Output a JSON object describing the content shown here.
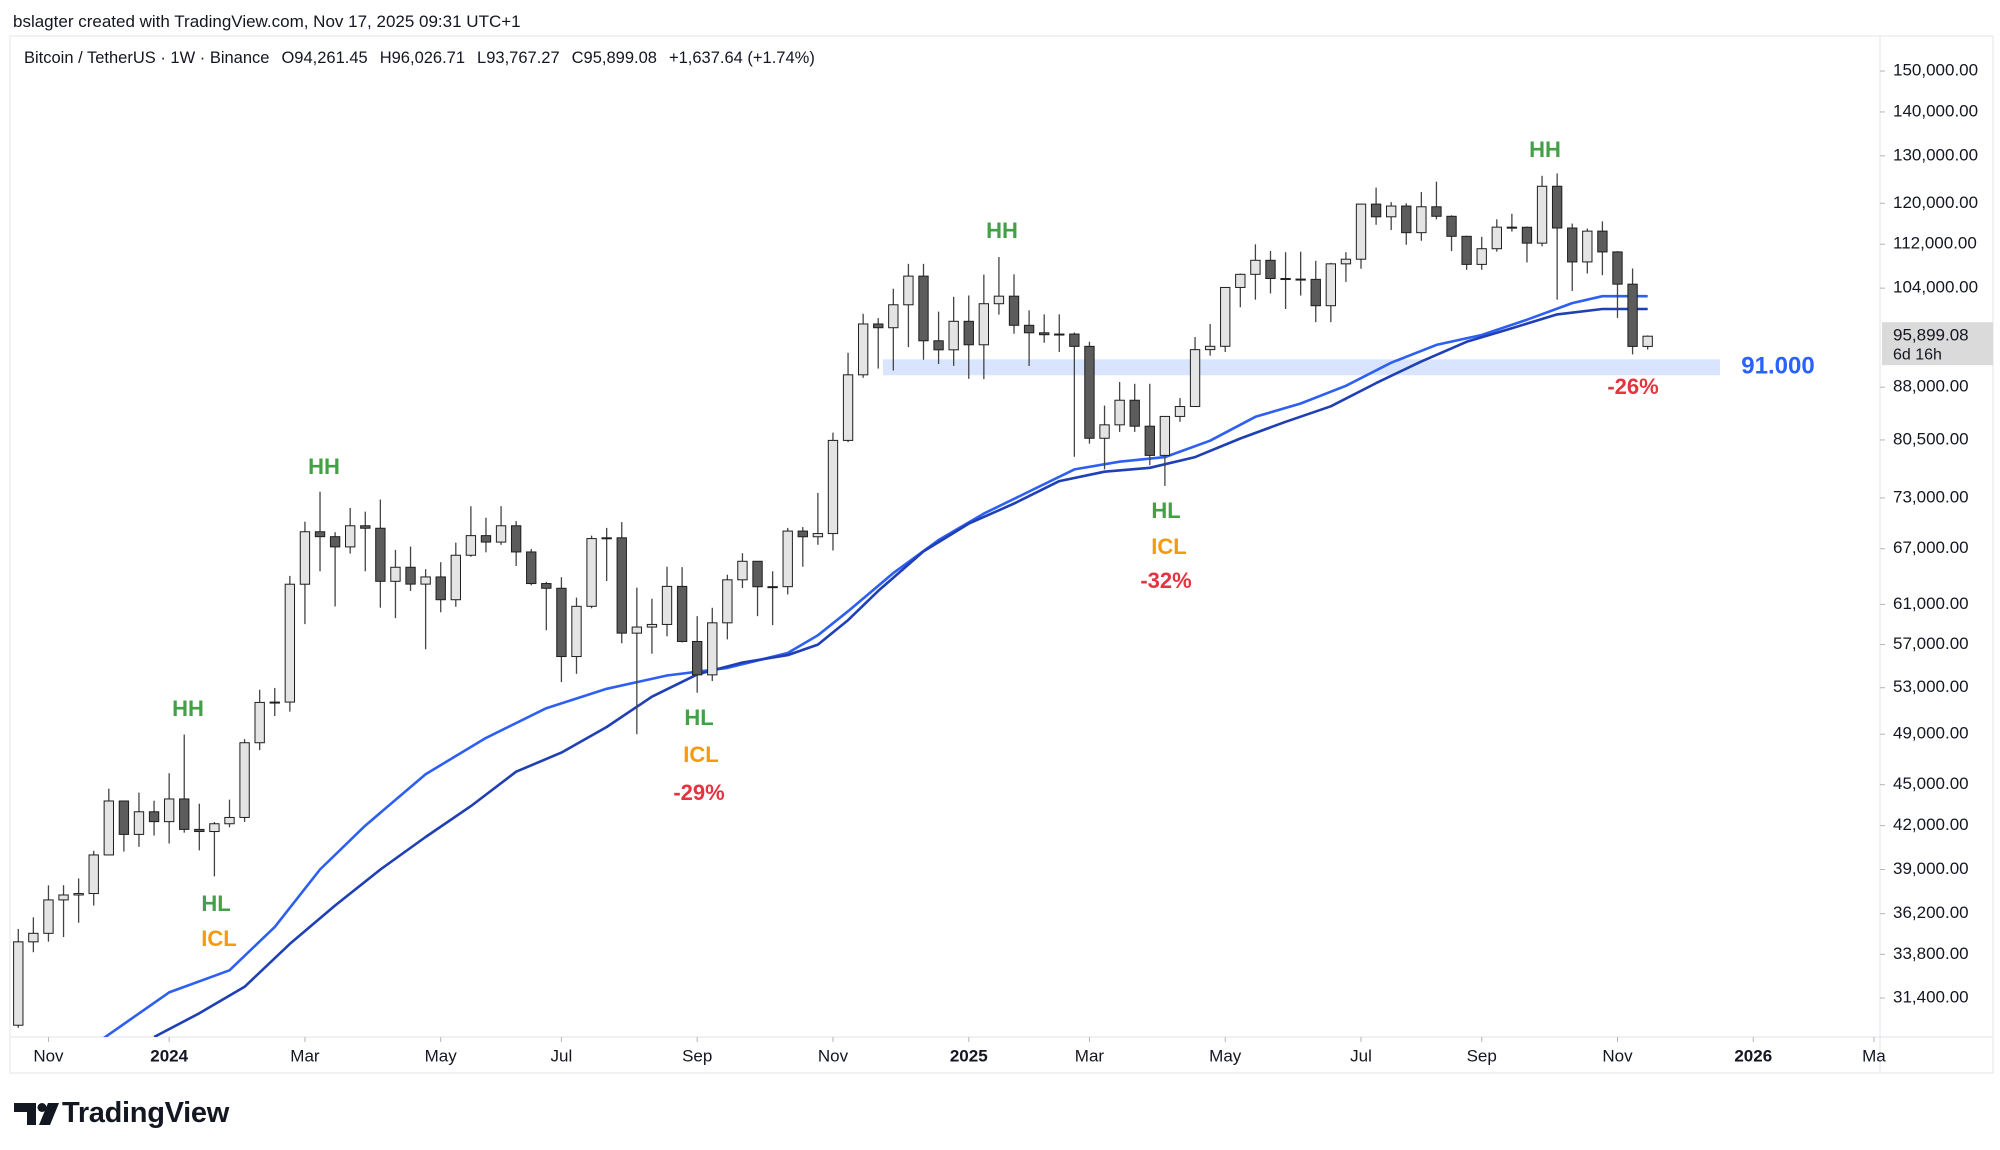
{
  "header": {
    "attribution": "bslagter created with TradingView.com, Nov 17, 2025 09:31 UTC+1",
    "symbol": "Bitcoin / TetherUS · 1W · Binance",
    "open": "O94,261.45",
    "high": "H96,026.71",
    "low": "L93,767.27",
    "close": "C95,899.08",
    "change": "+1,637.64 (+1.74%)"
  },
  "chart_data": {
    "type": "candlestick",
    "open": [
      29990,
      34520,
      35020,
      37050,
      37360,
      37450,
      39970,
      43780,
      41380,
      42990,
      42280,
      43930,
      41730,
      41580,
      42130,
      42580,
      48300,
      51700,
      51730,
      63110,
      68950,
      68380,
      67210,
      69650,
      69360,
      63420,
      64940,
      63120,
      63890,
      61480,
      66270,
      68500,
      67760,
      69650,
      66640,
      63180,
      62680,
      55860,
      60800,
      68160,
      68250,
      58110,
      58710,
      58970,
      62880,
      57300,
      54160,
      59130,
      63580,
      65600,
      62840,
      62850,
      69030,
      68370,
      68740,
      80440,
      89850,
      97900,
      97280,
      101120,
      106130,
      95160,
      93720,
      98340,
      94520,
      101300,
      102600,
      97680,
      96450,
      96140,
      96250,
      94270,
      80730,
      82580,
      86080,
      82390,
      78430,
      83760,
      85170,
      93750,
      94280,
      104120,
      106450,
      109000,
      105700,
      105600,
      105550,
      100960,
      108350,
      109200,
      119840,
      117300,
      119450,
      114200,
      119300,
      117400,
      113500,
      108250,
      111150,
      115270,
      115250,
      112200,
      123500,
      115100,
      108700,
      114500,
      110550,
      104700,
      94261.45
    ],
    "high": [
      35280,
      35980,
      37970,
      37980,
      38420,
      40250,
      44700,
      43800,
      44400,
      43800,
      45880,
      48970,
      43580,
      42260,
      43880,
      48590,
      52820,
      52980,
      64000,
      70130,
      73780,
      68900,
      71770,
      71330,
      72800,
      66870,
      67250,
      64730,
      65500,
      67700,
      71980,
      70600,
      71990,
      70200,
      66980,
      63360,
      63860,
      61700,
      68500,
      69400,
      70080,
      62750,
      61580,
      65000,
      64960,
      59800,
      60650,
      64130,
      66500,
      65600,
      64500,
      69400,
      69500,
      73620,
      81500,
      93260,
      99590,
      98870,
      103900,
      108350,
      108350,
      99960,
      102480,
      102720,
      106400,
      109600,
      106450,
      100180,
      99500,
      99500,
      96500,
      95000,
      85300,
      88770,
      88500,
      88500,
      83600,
      86400,
      95760,
      97900,
      104150,
      106600,
      111980,
      110720,
      110500,
      110600,
      108900,
      108530,
      110500,
      119900,
      123220,
      120250,
      120000,
      122300,
      124470,
      117600,
      113600,
      113400,
      116800,
      117900,
      115400,
      125700,
      126200,
      115970,
      115000,
      116400,
      110700,
      107500,
      96026.71
    ],
    "low": [
      29860,
      33920,
      34530,
      34800,
      35650,
      36700,
      39970,
      40200,
      40520,
      41300,
      40750,
      41500,
      40280,
      38550,
      41880,
      42260,
      47700,
      50520,
      50900,
      59000,
      64500,
      60780,
      66460,
      64500,
      60660,
      59600,
      62400,
      56550,
      60190,
      60750,
      66100,
      66600,
      67440,
      65080,
      63000,
      58400,
      53500,
      54260,
      60600,
      63450,
      57120,
      49000,
      56130,
      57800,
      57200,
      52550,
      53600,
      57500,
      62700,
      59800,
      58900,
      62030,
      65000,
      67450,
      66800,
      80200,
      89400,
      90800,
      90500,
      94150,
      92170,
      91500,
      91220,
      89250,
      89200,
      99450,
      96300,
      91200,
      94850,
      93380,
      78250,
      80000,
      76600,
      81600,
      81600,
      77150,
      74500,
      83000,
      85100,
      92800,
      93380,
      100700,
      102000,
      103060,
      100400,
      102700,
      98200,
      98200,
      105100,
      107450,
      115730,
      114700,
      111900,
      112650,
      116800,
      110700,
      107250,
      107270,
      110600,
      114400,
      108600,
      111600,
      102000,
      103500,
      106600,
      106300,
      98900,
      93000,
      93767.27
    ],
    "close": [
      34520,
      35020,
      37050,
      37360,
      37450,
      39970,
      43780,
      41380,
      42990,
      42280,
      43930,
      41730,
      41580,
      42130,
      42580,
      48300,
      51700,
      51730,
      63110,
      68950,
      68380,
      67210,
      69650,
      69360,
      63420,
      64940,
      63120,
      63890,
      61480,
      66270,
      68500,
      67760,
      69650,
      66640,
      63180,
      62680,
      55860,
      60800,
      68160,
      68250,
      58110,
      58710,
      58970,
      62880,
      57300,
      54160,
      59130,
      63580,
      65600,
      62840,
      62850,
      69030,
      68370,
      68740,
      80440,
      89850,
      97900,
      97280,
      101120,
      106130,
      95160,
      93720,
      98340,
      94520,
      101300,
      102600,
      97680,
      96450,
      96140,
      96250,
      94270,
      80730,
      82580,
      86080,
      82390,
      78430,
      83760,
      85170,
      93750,
      94280,
      104120,
      106450,
      109000,
      105700,
      105600,
      105550,
      100960,
      108350,
      109200,
      119840,
      117300,
      119450,
      114200,
      119300,
      117400,
      113500,
      108250,
      111150,
      115270,
      115250,
      112200,
      123500,
      115100,
      108700,
      114500,
      110550,
      104700,
      94261.45,
      95899.08
    ],
    "up_color": "#e4e4e4",
    "down_color": "#5c5c5c",
    "border_color": "#1e1e1e",
    "log_scale": true,
    "grid": false,
    "xlim": [
      -0.35,
      123.4
    ],
    "xticks": [
      {
        "value": 2,
        "label": "Nov"
      },
      {
        "value": 10,
        "label": "2024"
      },
      {
        "value": 19,
        "label": "Mar"
      },
      {
        "value": 28,
        "label": "May"
      },
      {
        "value": 36,
        "label": "Jul"
      },
      {
        "value": 45,
        "label": "Sep"
      },
      {
        "value": 54,
        "label": "Nov"
      },
      {
        "value": 63,
        "label": "2025"
      },
      {
        "value": 71,
        "label": "Mar"
      },
      {
        "value": 80,
        "label": "May"
      },
      {
        "value": 89,
        "label": "Jul"
      },
      {
        "value": 97,
        "label": "Sep"
      },
      {
        "value": 106,
        "label": "Nov"
      },
      {
        "value": 115,
        "label": "2026"
      },
      {
        "value": 123,
        "label": "Ma"
      }
    ],
    "ylim": [
      29400,
      158600
    ],
    "yticks": [
      {
        "value": 150000,
        "label": "150,000.00"
      },
      {
        "value": 140000,
        "label": "140,000.00"
      },
      {
        "value": 130000,
        "label": "130,000.00"
      },
      {
        "value": 120000,
        "label": "120,000.00"
      },
      {
        "value": 112000,
        "label": "112,000.00"
      },
      {
        "value": 104000,
        "label": "104,000.00"
      },
      {
        "value": 88000,
        "label": "88,000.00"
      },
      {
        "value": 80500,
        "label": "80,500.00"
      },
      {
        "value": 73000,
        "label": "73,000.00"
      },
      {
        "value": 67000,
        "label": "67,000.00"
      },
      {
        "value": 61000,
        "label": "61,000.00"
      },
      {
        "value": 57000,
        "label": "57,000.00"
      },
      {
        "value": 53000,
        "label": "53,000.00"
      },
      {
        "value": 49000,
        "label": "49,000.00"
      },
      {
        "value": 45000,
        "label": "45,000.00"
      },
      {
        "value": 42000,
        "label": "42,000.00"
      },
      {
        "value": 39000,
        "label": "39,000.00"
      },
      {
        "value": 36200,
        "label": "36,200.00"
      },
      {
        "value": 33800,
        "label": "33,800.00"
      },
      {
        "value": 31400,
        "label": "31,400.00"
      }
    ],
    "overlays": [
      {
        "color": "#2d5ff2",
        "x": [
          5,
          10,
          14,
          17,
          20,
          23,
          27,
          31,
          35,
          39,
          43,
          47,
          51,
          53,
          55,
          58,
          61,
          64,
          67,
          70,
          73,
          76,
          79,
          82,
          85,
          88,
          91,
          94,
          97,
          100,
          103,
          105,
          108
        ],
        "values": [
          29000,
          31700,
          32900,
          35400,
          39000,
          42000,
          45800,
          48700,
          51200,
          52900,
          54100,
          54800,
          56200,
          57900,
          60300,
          64300,
          68000,
          71100,
          73800,
          76600,
          77600,
          78200,
          80400,
          83700,
          85600,
          88200,
          91700,
          94500,
          96100,
          98600,
          101400,
          102600,
          102600
        ]
      },
      {
        "color": "#1f3fb4",
        "x": [
          9,
          12,
          15,
          18,
          21,
          24,
          27,
          30,
          33,
          36,
          39,
          42,
          45,
          48,
          51,
          53,
          55,
          57,
          60,
          63,
          66,
          69,
          72,
          75,
          78,
          81,
          84,
          87,
          90,
          93,
          96,
          99,
          102,
          105,
          108
        ],
        "values": [
          29400,
          30600,
          32000,
          34400,
          36700,
          39000,
          41200,
          43400,
          46000,
          47500,
          49600,
          52200,
          54200,
          55300,
          56000,
          57000,
          59400,
          62400,
          66700,
          69900,
          72300,
          75100,
          76300,
          76800,
          78200,
          80700,
          83000,
          85200,
          88600,
          91900,
          95000,
          97200,
          99500,
          100400,
          100400
        ]
      }
    ],
    "zone": {
      "value": 91000,
      "label": "91.000",
      "color": "#d9e5ff",
      "label_color": "#2962ff"
    },
    "last_price": {
      "value": 95899.08,
      "label": "95,899.08",
      "countdown": "6d 16h",
      "color": "#dadada"
    },
    "annotations": [
      {
        "text": "HH",
        "color": "#43a047"
      },
      {
        "text": "HL",
        "color": "#43a047"
      },
      {
        "text": "ICL",
        "color": "#f59a0c"
      },
      {
        "text": "HH",
        "color": "#43a047"
      },
      {
        "text": "HL",
        "color": "#43a047"
      },
      {
        "text": "ICL",
        "color": "#f59a0c"
      },
      {
        "text": "-29%",
        "color": "#e5333f"
      },
      {
        "text": "HH",
        "color": "#43a047"
      },
      {
        "text": "HL",
        "color": "#43a047"
      },
      {
        "text": "ICL",
        "color": "#f59a0c"
      },
      {
        "text": "-32%",
        "color": "#e5333f"
      },
      {
        "text": "HH",
        "color": "#43a047"
      },
      {
        "text": "-26%",
        "color": "#e5333f"
      }
    ]
  },
  "branding": {
    "logo_text": "TradingView"
  }
}
